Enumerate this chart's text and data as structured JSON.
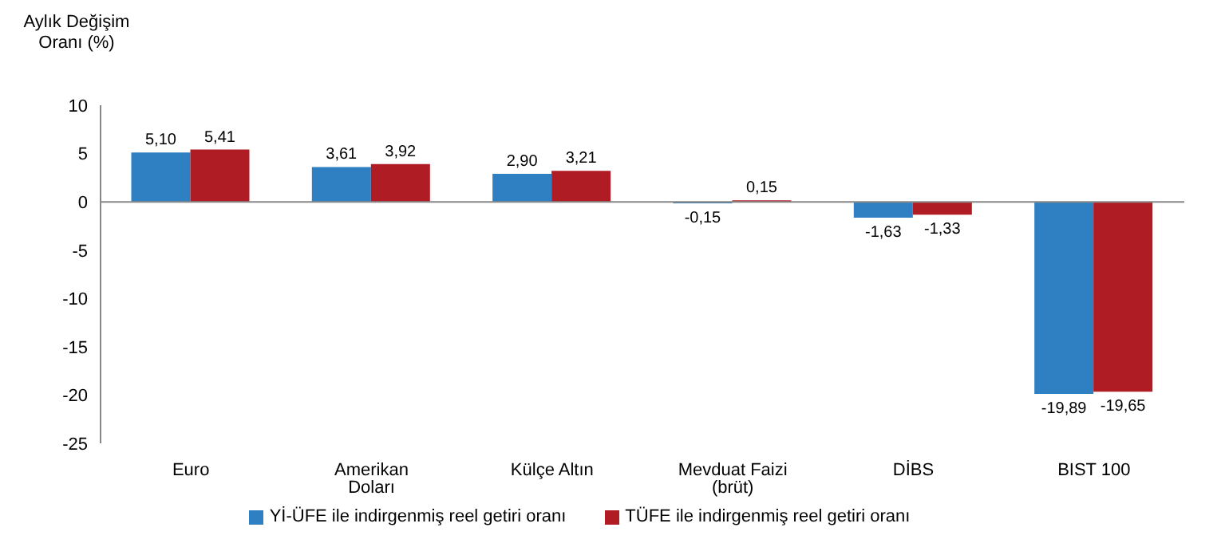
{
  "chart_data": {
    "type": "bar",
    "ylabel": "Aylık Değişim Oranı (%)",
    "categories": [
      "Euro",
      "Amerikan Doları",
      "Külçe Altın",
      "Mevduat Faizi (brüt)",
      "DİBS",
      "BIST 100"
    ],
    "series": [
      {
        "name": "Yİ-ÜFE ile indirgenmiş reel getiri oranı",
        "color": "#2f80c3",
        "values": [
          5.1,
          3.61,
          2.9,
          -0.15,
          -1.63,
          -19.89
        ],
        "value_labels": [
          "5,10",
          "3,61",
          "2,90",
          "-0,15",
          "-1,63",
          "-19,89"
        ]
      },
      {
        "name": "TÜFE ile indirgenmiş reel getiri oranı",
        "color": "#b01c24",
        "values": [
          5.41,
          3.92,
          3.21,
          0.15,
          -1.33,
          -19.65
        ],
        "value_labels": [
          "5,41",
          "3,92",
          "3,21",
          "0,15",
          "-1,33",
          "-19,65"
        ]
      }
    ],
    "ylim": [
      -25,
      10
    ],
    "yticks": [
      -25,
      -20,
      -15,
      -10,
      -5,
      0,
      5,
      10
    ],
    "ref_lines": [
      {
        "axis": "y",
        "value": 0,
        "color": "#888888"
      }
    ],
    "legend": "bottom"
  }
}
